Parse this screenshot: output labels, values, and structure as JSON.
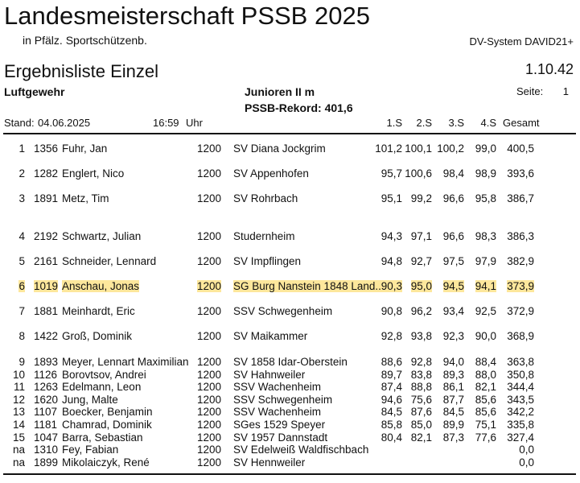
{
  "header": {
    "title": "Landesmeisterschaft PSSB 2025",
    "subtitle": "in Pfälz. Sportschützenb.",
    "system": "DV-System DAVID21+",
    "list_title": "Ergebnisliste Einzel",
    "version": "1.10.42",
    "discipline": "Luftgewehr",
    "class": "Junioren II m",
    "record": "PSSB-Rekord: 401,6",
    "page_label": "Seite:",
    "page_number": "1",
    "stand_label": "Stand:",
    "date": "04.06.2025",
    "time": "16:59",
    "time_unit": "Uhr"
  },
  "columns": [
    "1.S",
    "2.S",
    "3.S",
    "4.S",
    "Gesamt"
  ],
  "highlight_color": "#fde79c",
  "rows": [
    {
      "rank": "1",
      "id": "1356",
      "name": "Fuhr, Jan",
      "sk": "1200",
      "club": "SV Diana Jockgrim",
      "s1": "101,2",
      "s2": "100,1",
      "s3": "100,2",
      "s4": "99,0",
      "total": "400,5"
    },
    {
      "rank": "2",
      "id": "1282",
      "name": "Englert, Nico",
      "sk": "1200",
      "club": "SV Appenhofen",
      "s1": "95,7",
      "s2": "100,6",
      "s3": "98,4",
      "s4": "98,9",
      "total": "393,6"
    },
    {
      "rank": "3",
      "id": "1891",
      "name": "Metz, Tim",
      "sk": "1200",
      "club": "SV Rohrbach",
      "s1": "95,1",
      "s2": "99,2",
      "s3": "96,6",
      "s4": "95,8",
      "total": "386,7"
    },
    {
      "rank": "4",
      "id": "2192",
      "name": "Schwartz, Julian",
      "sk": "1200",
      "club": "Studernheim",
      "s1": "94,3",
      "s2": "97,1",
      "s3": "96,6",
      "s4": "98,3",
      "total": "386,3"
    },
    {
      "rank": "5",
      "id": "2161",
      "name": "Schneider, Lennard",
      "sk": "1200",
      "club": "SV Impflingen",
      "s1": "94,8",
      "s2": "92,7",
      "s3": "97,5",
      "s4": "97,9",
      "total": "382,9"
    },
    {
      "rank": "6",
      "id": "1019",
      "name": "Anschau, Jonas",
      "sk": "1200",
      "club": "SG Burg Nanstein 1848 Land...",
      "s1": "90,3",
      "s2": "95,0",
      "s3": "94,5",
      "s4": "94,1",
      "total": "373,9",
      "highlight": true
    },
    {
      "rank": "7",
      "id": "1881",
      "name": "Meinhardt, Eric",
      "sk": "1200",
      "club": "SSV Schwegenheim",
      "s1": "90,8",
      "s2": "96,2",
      "s3": "93,4",
      "s4": "92,5",
      "total": "372,9"
    },
    {
      "rank": "8",
      "id": "1422",
      "name": "Groß, Dominik",
      "sk": "1200",
      "club": "SV Maikammer",
      "s1": "92,8",
      "s2": "93,8",
      "s3": "92,3",
      "s4": "90,0",
      "total": "368,9"
    },
    {
      "rank": "9",
      "id": "1893",
      "name": "Meyer, Lennart Maximilian",
      "sk": "1200",
      "club": "SV 1858 Idar-Oberstein",
      "s1": "88,6",
      "s2": "92,8",
      "s3": "94,0",
      "s4": "88,4",
      "total": "363,8"
    },
    {
      "rank": "10",
      "id": "1126",
      "name": "Borovtsov, Andrei",
      "sk": "1200",
      "club": "SV Hahnweiler",
      "s1": "89,7",
      "s2": "83,8",
      "s3": "89,3",
      "s4": "88,0",
      "total": "350,8"
    },
    {
      "rank": "11",
      "id": "1263",
      "name": "Edelmann, Leon",
      "sk": "1200",
      "club": "SSV Wachenheim",
      "s1": "87,4",
      "s2": "88,8",
      "s3": "86,1",
      "s4": "82,1",
      "total": "344,4"
    },
    {
      "rank": "12",
      "id": "1620",
      "name": "Jung, Malte",
      "sk": "1200",
      "club": "SSV Schwegenheim",
      "s1": "94,6",
      "s2": "75,6",
      "s3": "87,7",
      "s4": "85,6",
      "total": "343,5"
    },
    {
      "rank": "13",
      "id": "1107",
      "name": "Boecker, Benjamin",
      "sk": "1200",
      "club": "SSV Wachenheim",
      "s1": "84,5",
      "s2": "87,6",
      "s3": "84,5",
      "s4": "85,6",
      "total": "342,2"
    },
    {
      "rank": "14",
      "id": "1181",
      "name": "Chamrad, Dominik",
      "sk": "1200",
      "club": "SGes 1529 Speyer",
      "s1": "85,8",
      "s2": "85,0",
      "s3": "89,9",
      "s4": "75,1",
      "total": "335,8"
    },
    {
      "rank": "15",
      "id": "1047",
      "name": "Barra, Sebastian",
      "sk": "1200",
      "club": "SV 1957 Dannstadt",
      "s1": "80,4",
      "s2": "82,1",
      "s3": "87,3",
      "s4": "77,6",
      "total": "327,4"
    },
    {
      "rank": "na",
      "id": "1310",
      "name": "Fey, Fabian",
      "sk": "1200",
      "club": "SV Edelweiß Waldfischbach",
      "s1": "",
      "s2": "",
      "s3": "",
      "s4": "",
      "total": "0,0"
    },
    {
      "rank": "na",
      "id": "1899",
      "name": "Mikolaiczyk, René",
      "sk": "1200",
      "club": "SV Hennweiler",
      "s1": "",
      "s2": "",
      "s3": "",
      "s4": "",
      "total": "0,0"
    }
  ]
}
